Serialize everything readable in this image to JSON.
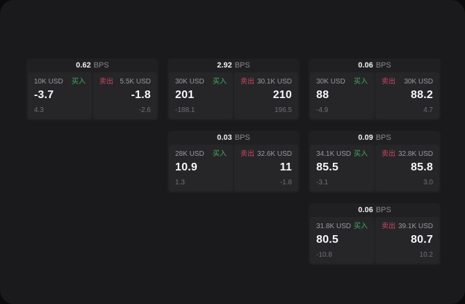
{
  "labels": {
    "unit": "BPS",
    "buy": "买入",
    "sell": "卖出"
  },
  "colors": {
    "buy_green": "#46aa5f",
    "sell_red": "#cd4660",
    "panel_bg": "#1a1a1c",
    "card_bg": "#202022",
    "tile_bg": "#262629"
  },
  "cards": [
    {
      "bps": "0.62",
      "buy": {
        "amount": "10K USD",
        "value": "-3.7",
        "delta": "4.3"
      },
      "sell": {
        "amount": "5.5K USD",
        "value": "-1.8",
        "delta": "-2.6"
      }
    },
    {
      "bps": "2.92",
      "buy": {
        "amount": "30K USD",
        "value": "201",
        "delta": "-188.1"
      },
      "sell": {
        "amount": "30.1K USD",
        "value": "210",
        "delta": "196.5"
      }
    },
    {
      "bps": "0.06",
      "buy": {
        "amount": "30K USD",
        "value": "88",
        "delta": "-4.9"
      },
      "sell": {
        "amount": "30K USD",
        "value": "88.2",
        "delta": "4.7"
      }
    },
    {
      "bps": "0.03",
      "buy": {
        "amount": "28K USD",
        "value": "10.9",
        "delta": "1.3"
      },
      "sell": {
        "amount": "32.6K USD",
        "value": "11",
        "delta": "-1.8"
      }
    },
    {
      "bps": "0.09",
      "buy": {
        "amount": "34.1K USD",
        "value": "85.5",
        "delta": "-3.1"
      },
      "sell": {
        "amount": "32.8K USD",
        "value": "85.8",
        "delta": "3.0"
      }
    },
    {
      "bps": "0.06",
      "buy": {
        "amount": "31.8K USD",
        "value": "80.5",
        "delta": "-10.8"
      },
      "sell": {
        "amount": "39.1K USD",
        "value": "80.7",
        "delta": "10.2"
      }
    }
  ]
}
